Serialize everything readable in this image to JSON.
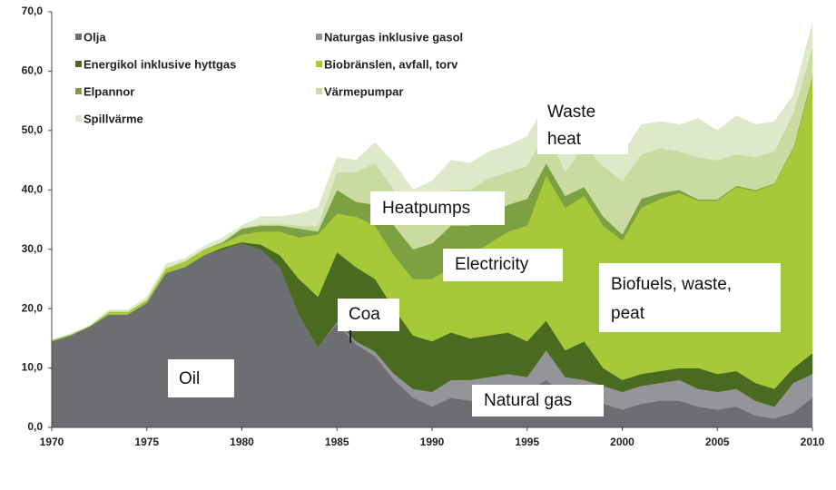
{
  "chart_data": {
    "type": "stacked_area",
    "x": [
      1970,
      1971,
      1972,
      1973,
      1974,
      1975,
      1976,
      1977,
      1978,
      1979,
      1980,
      1981,
      1982,
      1983,
      1984,
      1985,
      1986,
      1987,
      1988,
      1989,
      1990,
      1991,
      1992,
      1993,
      1994,
      1995,
      1996,
      1997,
      1998,
      1999,
      2000,
      2001,
      2002,
      2003,
      2004,
      2005,
      2006,
      2007,
      2008,
      2009,
      2010
    ],
    "series": [
      {
        "name": "Olja",
        "color": "#6d6e71",
        "values": [
          14.5,
          15.5,
          17,
          19,
          19,
          21,
          26,
          27,
          29,
          30,
          31,
          30,
          27,
          19,
          13.5,
          17.5,
          14,
          12,
          8,
          5,
          3.5,
          5,
          4.5,
          5.5,
          6,
          6,
          8,
          5.5,
          5,
          4,
          3,
          4,
          4.5,
          4.5,
          3.5,
          3,
          3.5,
          2,
          1.5,
          2.5,
          5
        ]
      },
      {
        "name": "Naturgas inklusive gasol",
        "color": "#939598",
        "values": [
          0,
          0,
          0,
          0,
          0,
          0,
          0,
          0,
          0,
          0,
          0,
          0,
          0,
          0,
          0,
          0.3,
          0.5,
          0.8,
          1,
          1.5,
          2.5,
          3,
          3.5,
          3,
          3,
          2.5,
          5,
          3,
          3,
          3,
          3,
          3,
          3,
          3.5,
          3,
          3,
          3,
          2.5,
          2,
          5,
          4
        ]
      },
      {
        "name": "Energikol inklusive hyttgas",
        "color": "#4a6b1f",
        "values": [
          0,
          0,
          0,
          0,
          0,
          0,
          0,
          0,
          0,
          0.3,
          0.2,
          0.8,
          2,
          6,
          8.5,
          11.7,
          12.5,
          12.2,
          11,
          9,
          8.5,
          8,
          7,
          7,
          7,
          6,
          5,
          4.5,
          6.5,
          3,
          2,
          2,
          2,
          2,
          3.5,
          3,
          3,
          3,
          3,
          2.5,
          3.5
        ]
      },
      {
        "name": "Biobränslen, avfall, torv",
        "color": "#a6c93a",
        "values": [
          0.2,
          0.2,
          0.1,
          0.5,
          0.5,
          0.5,
          0.8,
          1,
          1,
          0.7,
          1.3,
          2.2,
          4,
          7,
          10.5,
          6.5,
          8.5,
          9,
          9,
          9.5,
          10.5,
          11,
          14,
          15.5,
          17,
          19.5,
          24.5,
          24,
          24.5,
          24,
          23.5,
          28,
          29,
          29.5,
          28.2,
          29.2,
          31,
          32.3,
          34.5,
          37,
          46.5
        ]
      },
      {
        "name": "Elpannor",
        "color": "#7da142",
        "values": [
          0,
          0,
          0,
          0,
          0,
          0,
          0,
          0,
          0,
          0.2,
          1,
          1,
          1,
          1.5,
          0.5,
          4,
          2.5,
          3.5,
          5,
          5,
          6,
          7,
          5,
          5,
          4.5,
          4.5,
          2,
          2,
          1.5,
          1.5,
          1,
          1.5,
          1,
          0.5,
          0.2,
          0.2,
          0.2,
          0.2,
          0.1,
          0.2,
          0.2
        ]
      },
      {
        "name": "Värmepumpar",
        "color": "#c9dba0",
        "values": [
          0,
          0,
          0,
          0,
          0,
          0,
          0,
          0,
          0,
          0.1,
          0.1,
          0.2,
          0.3,
          0.5,
          1,
          3,
          5,
          7,
          6,
          6,
          6,
          6,
          6,
          6,
          5.5,
          5.5,
          5.5,
          4,
          7,
          8.5,
          9,
          7.5,
          7.5,
          6.5,
          7.1,
          6.6,
          5.3,
          5.5,
          5.4,
          5.8,
          4.8
        ]
      },
      {
        "name": "Spillvärme",
        "color": "#dfe8c8",
        "values": [
          0.1,
          0.1,
          0.1,
          0.3,
          0.3,
          0.5,
          0.7,
          0.5,
          0.5,
          0.7,
          0.4,
          1.3,
          1.2,
          2,
          3,
          2.5,
          2,
          3.5,
          4.5,
          4,
          4.5,
          5,
          4.5,
          4.5,
          4.5,
          5,
          4.5,
          3,
          3.5,
          4.5,
          4.5,
          5,
          4.5,
          4.5,
          6.5,
          5,
          6.5,
          5.5,
          5,
          3,
          4
        ]
      }
    ],
    "xlim": [
      1970,
      2010
    ],
    "xticks": [
      1970,
      1975,
      1980,
      1985,
      1990,
      1995,
      2000,
      2005,
      2010
    ],
    "ylim": [
      0,
      70
    ],
    "yticks": [
      {
        "value": 0,
        "label": "0,0"
      },
      {
        "value": 10,
        "label": "10,0"
      },
      {
        "value": 20,
        "label": "20,0"
      },
      {
        "value": 30,
        "label": "30,0"
      },
      {
        "value": 40,
        "label": "40,0"
      },
      {
        "value": 50,
        "label": "50,0"
      },
      {
        "value": 60,
        "label": "60,0"
      },
      {
        "value": 70,
        "label": "70,0"
      }
    ],
    "grid": false,
    "legend": "top-left",
    "annotations": [
      {
        "lines": [
          "Waste",
          "heat"
        ]
      },
      {
        "lines": [
          "Heatpumps"
        ]
      },
      {
        "lines": [
          "Electricity"
        ]
      },
      {
        "lines": [
          "Coa",
          "l"
        ]
      },
      {
        "lines": [
          "Biofuels, waste,",
          "peat"
        ]
      },
      {
        "lines": [
          "Oil"
        ]
      },
      {
        "lines": [
          "Natural gas"
        ]
      }
    ]
  }
}
